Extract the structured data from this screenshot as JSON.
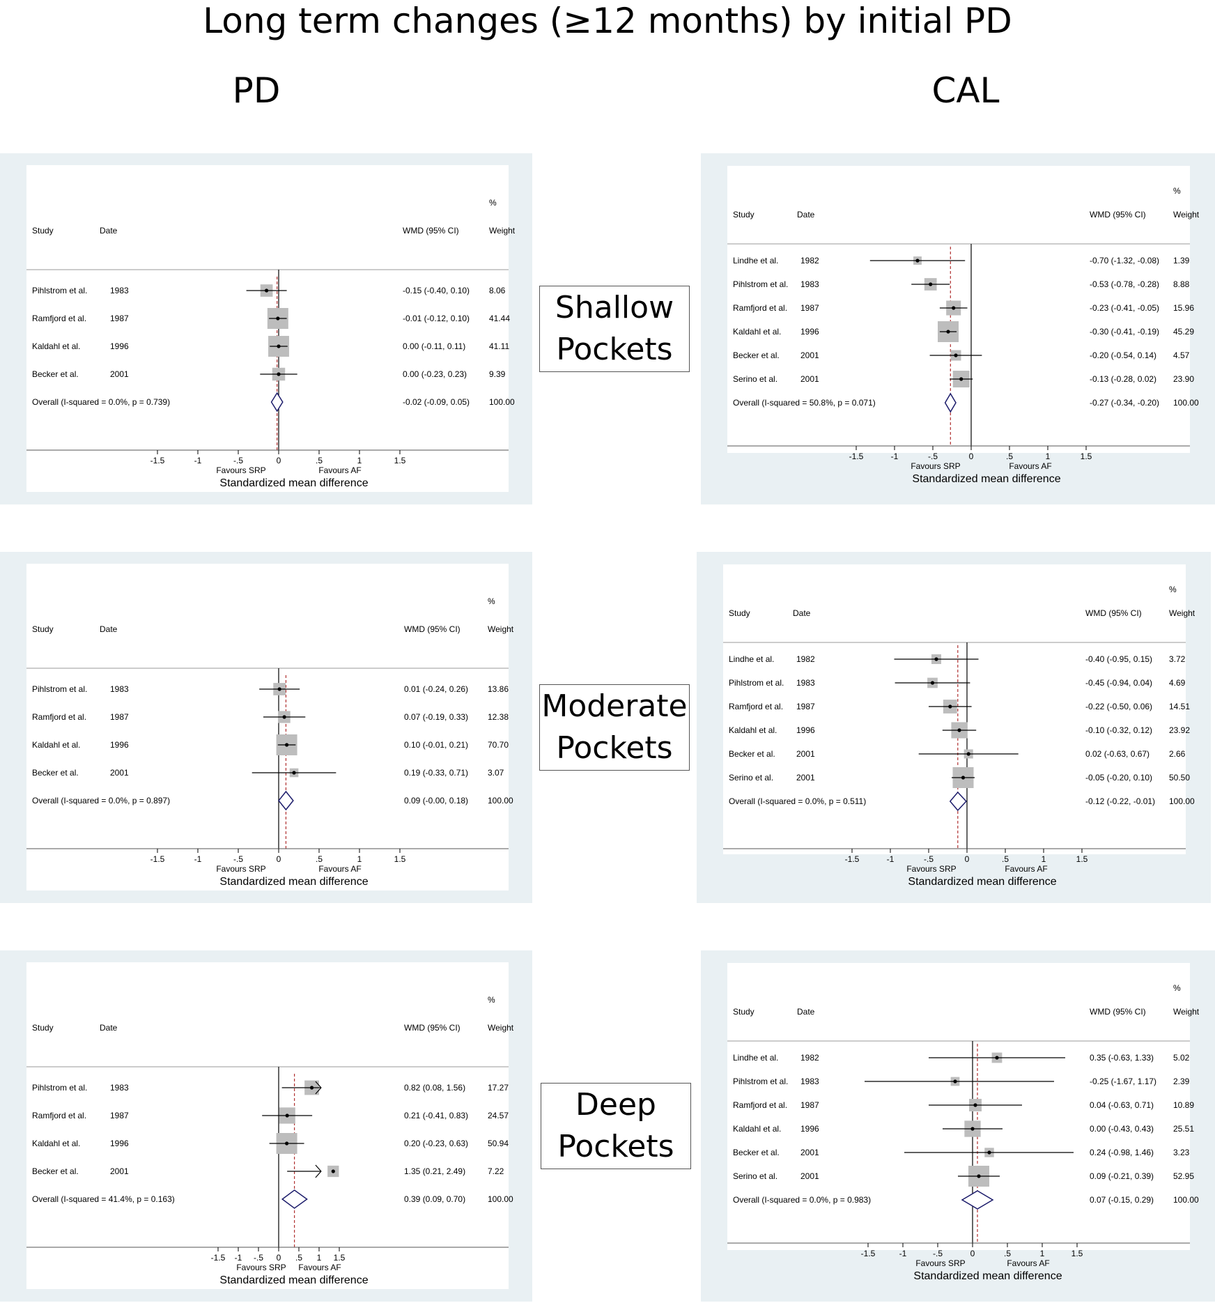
{
  "title": "Long term changes (≥12 months) by initial PD",
  "columns": {
    "left": "PD",
    "right": "CAL"
  },
  "row_labels": [
    {
      "line1": "Shallow",
      "line2": "Pockets"
    },
    {
      "line1": "Moderate",
      "line2": "Pockets"
    },
    {
      "line1": "Deep",
      "line2": "Pockets"
    }
  ],
  "colors": {
    "panel_bg": "#e9f0f3",
    "box": "#bdbdbd",
    "diamond": "#1c1c6b",
    "null_line": "#000000",
    "overall_line": "#b03030"
  },
  "chart_data": [
    {
      "type": "forest",
      "headers": {
        "study": "Study",
        "date": "Date",
        "wmd": "WMD (95% CI)",
        "pct": "%",
        "weight": "Weight"
      },
      "xticks": [
        "-1.5",
        "-1",
        "-.5",
        "0",
        ".5",
        "1",
        "1.5"
      ],
      "xtick_values": [
        -1.5,
        -1,
        -0.5,
        0,
        0.5,
        1,
        1.5
      ],
      "xlabel": "Standardized mean difference",
      "favours_left": "Favours SRP",
      "favours_right": "Favours AF",
      "studies": [
        {
          "name": "Pihlstrom et al.",
          "date": "1983",
          "est": -0.15,
          "lo": -0.4,
          "hi": 0.1,
          "ci_text": "-0.15 (-0.40, 0.10)",
          "weight": "8.06"
        },
        {
          "name": "Ramfjord et al.",
          "date": "1987",
          "est": -0.01,
          "lo": -0.12,
          "hi": 0.1,
          "ci_text": "-0.01 (-0.12, 0.10)",
          "weight": "41.44"
        },
        {
          "name": "Kaldahl et al.",
          "date": "1996",
          "est": 0.0,
          "lo": -0.11,
          "hi": 0.11,
          "ci_text": "0.00 (-0.11, 0.11)",
          "weight": "41.11"
        },
        {
          "name": "Becker et al.",
          "date": "2001",
          "est": 0.0,
          "lo": -0.23,
          "hi": 0.23,
          "ci_text": "0.00 (-0.23, 0.23)",
          "weight": "9.39"
        }
      ],
      "overall": {
        "label": "Overall  (I-squared = 0.0%, p = 0.739)",
        "est": -0.02,
        "lo": -0.09,
        "hi": 0.05,
        "ci_text": "-0.02 (-0.09, 0.05)",
        "weight": "100.00"
      }
    },
    {
      "type": "forest",
      "headers": {
        "study": "Study",
        "date": "Date",
        "wmd": "WMD (95% CI)",
        "pct": "%",
        "weight": "Weight"
      },
      "xticks": [
        "-1.5",
        "-1",
        "-.5",
        "0",
        ".5",
        "1",
        "1.5"
      ],
      "xtick_values": [
        -1.5,
        -1,
        -0.5,
        0,
        0.5,
        1,
        1.5
      ],
      "xlabel": "Standardized mean difference",
      "favours_left": "Favours SRP",
      "favours_right": "Favours AF",
      "studies": [
        {
          "name": "Lindhe et al.",
          "date": "1982",
          "est": -0.7,
          "lo": -1.32,
          "hi": -0.08,
          "ci_text": "-0.70 (-1.32, -0.08)",
          "weight": "1.39"
        },
        {
          "name": "Pihlstrom et al.",
          "date": "1983",
          "est": -0.53,
          "lo": -0.78,
          "hi": -0.28,
          "ci_text": "-0.53 (-0.78, -0.28)",
          "weight": "8.88"
        },
        {
          "name": "Ramfjord et al.",
          "date": "1987",
          "est": -0.23,
          "lo": -0.41,
          "hi": -0.05,
          "ci_text": "-0.23 (-0.41, -0.05)",
          "weight": "15.96"
        },
        {
          "name": "Kaldahl et al.",
          "date": "1996",
          "est": -0.3,
          "lo": -0.41,
          "hi": -0.19,
          "ci_text": "-0.30 (-0.41, -0.19)",
          "weight": "45.29"
        },
        {
          "name": "Becker et al.",
          "date": "2001",
          "est": -0.2,
          "lo": -0.54,
          "hi": 0.14,
          "ci_text": "-0.20 (-0.54, 0.14)",
          "weight": "4.57"
        },
        {
          "name": "Serino et al.",
          "date": "2001",
          "est": -0.13,
          "lo": -0.28,
          "hi": 0.02,
          "ci_text": "-0.13 (-0.28, 0.02)",
          "weight": "23.90"
        }
      ],
      "overall": {
        "label": "Overall  (I-squared = 50.8%, p = 0.071)",
        "est": -0.27,
        "lo": -0.34,
        "hi": -0.2,
        "ci_text": "-0.27 (-0.34, -0.20)",
        "weight": "100.00"
      }
    },
    {
      "type": "forest",
      "headers": {
        "study": "Study",
        "date": "Date",
        "wmd": "WMD (95% CI)",
        "pct": "%",
        "weight": "Weight"
      },
      "xticks": [
        "-1.5",
        "-1",
        "-.5",
        "0",
        ".5",
        "1",
        "1.5"
      ],
      "xtick_values": [
        -1.5,
        -1,
        -0.5,
        0,
        0.5,
        1,
        1.5
      ],
      "xlabel": "Standardized mean difference",
      "favours_left": "Favours SRP",
      "favours_right": "Favours AF",
      "studies": [
        {
          "name": "Pihlstrom et al.",
          "date": "1983",
          "est": 0.01,
          "lo": -0.24,
          "hi": 0.26,
          "ci_text": "0.01 (-0.24, 0.26)",
          "weight": "13.86"
        },
        {
          "name": "Ramfjord et al.",
          "date": "1987",
          "est": 0.07,
          "lo": -0.19,
          "hi": 0.33,
          "ci_text": "0.07 (-0.19, 0.33)",
          "weight": "12.38"
        },
        {
          "name": "Kaldahl et al.",
          "date": "1996",
          "est": 0.1,
          "lo": -0.01,
          "hi": 0.21,
          "ci_text": "0.10 (-0.01, 0.21)",
          "weight": "70.70"
        },
        {
          "name": "Becker et al.",
          "date": "2001",
          "est": 0.19,
          "lo": -0.33,
          "hi": 0.71,
          "ci_text": "0.19 (-0.33, 0.71)",
          "weight": "3.07"
        }
      ],
      "overall": {
        "label": "Overall  (I-squared = 0.0%, p = 0.897)",
        "est": 0.09,
        "lo": -0.0,
        "hi": 0.18,
        "ci_text": "0.09 (-0.00, 0.18)",
        "weight": "100.00"
      }
    },
    {
      "type": "forest",
      "headers": {
        "study": "Study",
        "date": "Date",
        "wmd": "WMD (95% CI)",
        "pct": "%",
        "weight": "Weight"
      },
      "xticks": [
        "-1.5",
        "-1",
        "-.5",
        "0",
        ".5",
        "1",
        "1.5"
      ],
      "xtick_values": [
        -1.5,
        -1,
        -0.5,
        0,
        0.5,
        1,
        1.5
      ],
      "xlabel": "Standardized mean difference",
      "favours_left": "Favours SRP",
      "favours_right": "Favours AF",
      "studies": [
        {
          "name": "Lindhe et al.",
          "date": "1982",
          "est": -0.4,
          "lo": -0.95,
          "hi": 0.15,
          "ci_text": "-0.40 (-0.95, 0.15)",
          "weight": "3.72"
        },
        {
          "name": "Pihlstrom et al.",
          "date": "1983",
          "est": -0.45,
          "lo": -0.94,
          "hi": 0.04,
          "ci_text": "-0.45 (-0.94, 0.04)",
          "weight": "4.69"
        },
        {
          "name": "Ramfjord et al.",
          "date": "1987",
          "est": -0.22,
          "lo": -0.5,
          "hi": 0.06,
          "ci_text": "-0.22 (-0.50, 0.06)",
          "weight": "14.51"
        },
        {
          "name": "Kaldahl et al.",
          "date": "1996",
          "est": -0.1,
          "lo": -0.32,
          "hi": 0.12,
          "ci_text": "-0.10 (-0.32, 0.12)",
          "weight": "23.92"
        },
        {
          "name": "Becker et al.",
          "date": "2001",
          "est": 0.02,
          "lo": -0.63,
          "hi": 0.67,
          "ci_text": "0.02 (-0.63, 0.67)",
          "weight": "2.66"
        },
        {
          "name": "Serino et al.",
          "date": "2001",
          "est": -0.05,
          "lo": -0.2,
          "hi": 0.1,
          "ci_text": "-0.05 (-0.20, 0.10)",
          "weight": "50.50"
        }
      ],
      "overall": {
        "label": "Overall  (I-squared = 0.0%, p = 0.511)",
        "est": -0.12,
        "lo": -0.22,
        "hi": -0.01,
        "ci_text": "-0.12 (-0.22, -0.01)",
        "weight": "100.00"
      }
    },
    {
      "type": "forest",
      "headers": {
        "study": "Study",
        "date": "Date",
        "wmd": "WMD (95% CI)",
        "pct": "%",
        "weight": "Weight"
      },
      "xticks": [
        "-1.5",
        "-1",
        "-.5",
        "0",
        ".5",
        "1",
        "1.5"
      ],
      "xtick_values": [
        -1.5,
        -1,
        -0.5,
        0,
        0.5,
        1,
        1.5
      ],
      "xlabel": "Standardized mean difference",
      "favours_left": "Favours SRP",
      "favours_right": "Favours AF",
      "studies": [
        {
          "name": "Pihlstrom et al.",
          "date": "1983",
          "est": 0.82,
          "lo": 0.08,
          "hi": 1.56,
          "ci_text": "0.82 (0.08, 1.56)",
          "weight": "17.27"
        },
        {
          "name": "Ramfjord et al.",
          "date": "1987",
          "est": 0.21,
          "lo": -0.41,
          "hi": 0.83,
          "ci_text": "0.21 (-0.41, 0.83)",
          "weight": "24.57"
        },
        {
          "name": "Kaldahl et al.",
          "date": "1996",
          "est": 0.2,
          "lo": -0.23,
          "hi": 0.63,
          "ci_text": "0.20 (-0.23, 0.63)",
          "weight": "50.94"
        },
        {
          "name": "Becker et al.",
          "date": "2001",
          "est": 1.35,
          "lo": 0.21,
          "hi": 2.49,
          "ci_text": "1.35 (0.21, 2.49)",
          "weight": "7.22"
        }
      ],
      "overall": {
        "label": "Overall  (I-squared = 41.4%, p = 0.163)",
        "est": 0.39,
        "lo": 0.09,
        "hi": 0.7,
        "ci_text": "0.39 (0.09, 0.70)",
        "weight": "100.00"
      }
    },
    {
      "type": "forest",
      "headers": {
        "study": "Study",
        "date": "Date",
        "wmd": "WMD (95% CI)",
        "pct": "%",
        "weight": "Weight"
      },
      "xticks": [
        "-1.5",
        "-1",
        "-.5",
        "0",
        ".5",
        "1",
        "1.5"
      ],
      "xtick_values": [
        -1.5,
        -1,
        -0.5,
        0,
        0.5,
        1,
        1.5
      ],
      "xlabel": "Standardized mean difference",
      "favours_left": "Favours SRP",
      "favours_right": "Favours AF",
      "studies": [
        {
          "name": "Lindhe et al.",
          "date": "1982",
          "est": 0.35,
          "lo": -0.63,
          "hi": 1.33,
          "ci_text": "0.35 (-0.63, 1.33)",
          "weight": "5.02"
        },
        {
          "name": "Pihlstrom et al.",
          "date": "1983",
          "est": -0.25,
          "lo": -1.67,
          "hi": 1.17,
          "ci_text": "-0.25 (-1.67, 1.17)",
          "weight": "2.39"
        },
        {
          "name": "Ramfjord et al.",
          "date": "1987",
          "est": 0.04,
          "lo": -0.63,
          "hi": 0.71,
          "ci_text": "0.04 (-0.63, 0.71)",
          "weight": "10.89"
        },
        {
          "name": "Kaldahl et al.",
          "date": "1996",
          "est": 0.0,
          "lo": -0.43,
          "hi": 0.43,
          "ci_text": "0.00 (-0.43, 0.43)",
          "weight": "25.51"
        },
        {
          "name": "Becker et al.",
          "date": "2001",
          "est": 0.24,
          "lo": -0.98,
          "hi": 1.46,
          "ci_text": "0.24 (-0.98, 1.46)",
          "weight": "3.23"
        },
        {
          "name": "Serino et al.",
          "date": "2001",
          "est": 0.09,
          "lo": -0.21,
          "hi": 0.39,
          "ci_text": "0.09 (-0.21, 0.39)",
          "weight": "52.95"
        }
      ],
      "overall": {
        "label": "Overall  (I-squared = 0.0%, p = 0.983)",
        "est": 0.07,
        "lo": -0.15,
        "hi": 0.29,
        "ci_text": "0.07 (-0.15, 0.29)",
        "weight": "100.00"
      }
    }
  ]
}
